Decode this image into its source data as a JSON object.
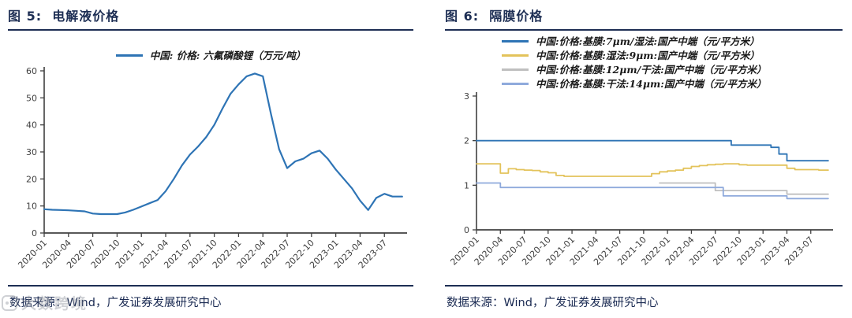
{
  "colors": {
    "title_navy": "#1D2E54",
    "axis_gray": "#404040",
    "series_blue": "#2E74B5",
    "series_yellow": "#E3C35B",
    "series_gray": "#BFBFBF",
    "series_light_blue": "#8FAADC"
  },
  "figures": [
    {
      "title": "图 5:  电解液价格",
      "source": "数据来源：Wind，广发证券发展研究中心"
    },
    {
      "title": "图 6:  隔膜价格",
      "source": "数据来源：Wind，广发证券发展研究中心"
    }
  ],
  "watermark": {
    "text": "大数跨境"
  },
  "chart_data": [
    {
      "type": "line",
      "title": "电解液价格",
      "xlabel": "",
      "ylabel": "",
      "ylim": [
        0,
        60
      ],
      "yticks": [
        0,
        10,
        20,
        30,
        40,
        50,
        60
      ],
      "x_tick_labels": [
        "2020-01",
        "2020-04",
        "2020-07",
        "2020-10",
        "2021-01",
        "2021-04",
        "2021-07",
        "2021-10",
        "2022-01",
        "2022-04",
        "2022-07",
        "2022-10",
        "2023-01",
        "2023-04",
        "2023-07"
      ],
      "months_per_tick": 3,
      "grid": false,
      "legend_position": "top-center",
      "series": [
        {
          "name": "中国: 价格: 六氟磷酸锂（万元/吨）",
          "color": "#2E74B5",
          "step": false,
          "x_start": 0,
          "values": [
            8.8,
            8.6,
            8.5,
            8.4,
            8.2,
            8.0,
            7.2,
            7.0,
            7.0,
            7.0,
            7.6,
            8.6,
            9.8,
            11.0,
            12.2,
            15.5,
            20.0,
            25.0,
            29.0,
            32.0,
            35.5,
            40.0,
            46.0,
            51.5,
            55.0,
            58.0,
            59.0,
            58.0,
            44.0,
            31.0,
            24.0,
            26.5,
            27.5,
            29.5,
            30.5,
            27.5,
            23.5,
            20.0,
            16.5,
            12.0,
            8.5,
            13.0,
            14.5,
            13.5
          ]
        }
      ]
    },
    {
      "type": "line",
      "title": "隔膜价格",
      "xlabel": "",
      "ylabel": "",
      "ylim": [
        0,
        3
      ],
      "yticks": [
        0,
        1,
        2,
        3
      ],
      "x_tick_labels": [
        "2020-01",
        "2020-04",
        "2020-07",
        "2020-10",
        "2021-01",
        "2021-04",
        "2021-07",
        "2021-10",
        "2022-01",
        "2022-04",
        "2022-07",
        "2022-10",
        "2023-01",
        "2023-04",
        "2023-07"
      ],
      "months_per_tick": 3,
      "grid": false,
      "legend_position": "top-left",
      "series": [
        {
          "name": "中国:价格:基膜:7μm/湿法:国产中端（元/平方米）",
          "color": "#2E74B5",
          "step": true,
          "x_start": 0,
          "values": [
            2.0,
            2.0,
            2.0,
            2.0,
            2.0,
            2.0,
            2.0,
            2.0,
            2.0,
            2.0,
            2.0,
            2.0,
            2.0,
            2.0,
            2.0,
            2.0,
            2.0,
            2.0,
            2.0,
            2.0,
            2.0,
            2.0,
            2.0,
            2.0,
            2.0,
            2.0,
            2.0,
            2.0,
            2.0,
            2.0,
            2.0,
            2.0,
            1.9,
            1.9,
            1.9,
            1.9,
            1.9,
            1.85,
            1.7,
            1.55,
            1.55,
            1.55,
            1.55,
            1.55
          ]
        },
        {
          "name": "中国:价格:基膜:湿法:9μm:国产中端（元/平方米）",
          "color": "#E3C35B",
          "step": true,
          "x_start": 0,
          "values": [
            1.48,
            1.48,
            1.48,
            1.27,
            1.37,
            1.35,
            1.34,
            1.33,
            1.3,
            1.28,
            1.22,
            1.2,
            1.2,
            1.2,
            1.2,
            1.2,
            1.2,
            1.2,
            1.2,
            1.2,
            1.2,
            1.2,
            1.26,
            1.3,
            1.32,
            1.34,
            1.38,
            1.42,
            1.44,
            1.46,
            1.47,
            1.48,
            1.48,
            1.46,
            1.45,
            1.45,
            1.45,
            1.45,
            1.45,
            1.38,
            1.35,
            1.35,
            1.35,
            1.34
          ]
        },
        {
          "name": "中国:价格:基膜:12μm/干法:国产中端（元/平方米）",
          "color": "#BFBFBF",
          "step": true,
          "x_start": 23,
          "values": [
            1.05,
            1.05,
            1.05,
            1.05,
            1.05,
            1.05,
            1.05,
            0.88,
            0.88,
            0.88,
            0.88,
            0.88,
            0.88,
            0.88,
            0.88,
            0.88,
            0.8,
            0.8,
            0.8,
            0.8,
            0.8
          ]
        },
        {
          "name": "中国:价格:基膜:干法:14μm:国产中端（元/平方米）",
          "color": "#8FAADC",
          "step": true,
          "x_start": 0,
          "values": [
            1.05,
            1.05,
            1.05,
            0.95,
            0.95,
            0.95,
            0.95,
            0.95,
            0.95,
            0.95,
            0.95,
            0.95,
            0.95,
            0.95,
            0.95,
            0.95,
            0.95,
            0.95,
            0.95,
            0.95,
            0.95,
            0.95,
            0.95,
            0.95,
            0.95,
            0.95,
            0.95,
            0.95,
            0.95,
            0.95,
            0.95,
            0.76,
            0.76,
            0.76,
            0.76,
            0.76,
            0.76,
            0.76,
            0.76,
            0.7,
            0.7,
            0.7,
            0.7,
            0.7
          ]
        }
      ]
    }
  ]
}
